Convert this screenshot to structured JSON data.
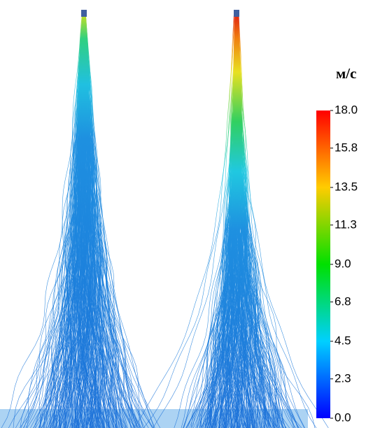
{
  "colorbar": {
    "unit": "м/с",
    "range": [
      0,
      18
    ],
    "ticks": [
      {
        "value": 18,
        "label": "18.0"
      },
      {
        "value": 15.8,
        "label": "15.8"
      },
      {
        "value": 13.5,
        "label": "13.5"
      },
      {
        "value": 11.3,
        "label": "11.3"
      },
      {
        "value": 9,
        "label": "9.0"
      },
      {
        "value": 6.8,
        "label": "6.8"
      },
      {
        "value": 4.5,
        "label": "4.5"
      },
      {
        "value": 2.3,
        "label": "2.3"
      },
      {
        "value": 0,
        "label": "0.0"
      }
    ]
  }
}
